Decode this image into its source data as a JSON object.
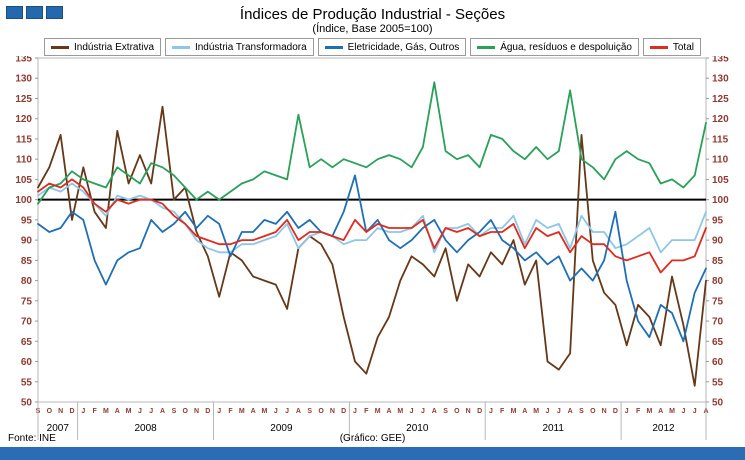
{
  "header": {
    "title": "Índices de Produção Industrial - Seções",
    "subtitle": "(Índice,  Base 2005=100)"
  },
  "footer": {
    "source": "Fonte: INE",
    "credit": "(Gráfico: GEE)"
  },
  "logo": {
    "color": "#2468ae"
  },
  "chart_data": {
    "type": "line",
    "title": "Índices de Produção Industrial - Seções",
    "subtitle": "(Índice, Base 2005=100)",
    "ylim": [
      50,
      135
    ],
    "ytick_step": 5,
    "baseline": 100,
    "legend_position": "top",
    "grid": false,
    "axis_label_color": "#8f3a32",
    "x_months": [
      "S",
      "O",
      "N",
      "D",
      "J",
      "F",
      "M",
      "A",
      "M",
      "J",
      "J",
      "A",
      "S",
      "O",
      "N",
      "D",
      "J",
      "F",
      "M",
      "A",
      "M",
      "J",
      "J",
      "A",
      "S",
      "O",
      "N",
      "D",
      "J",
      "F",
      "M",
      "A",
      "M",
      "J",
      "J",
      "A",
      "S",
      "O",
      "N",
      "D",
      "J",
      "F",
      "M",
      "A",
      "M",
      "J",
      "J",
      "A",
      "S",
      "O",
      "N",
      "D",
      "J",
      "F",
      "M",
      "A",
      "M",
      "J",
      "J",
      "A"
    ],
    "year_groups": [
      {
        "label": "2007",
        "start": 0,
        "end": 3
      },
      {
        "label": "2008",
        "start": 4,
        "end": 15
      },
      {
        "label": "2009",
        "start": 16,
        "end": 27
      },
      {
        "label": "2010",
        "start": 28,
        "end": 39
      },
      {
        "label": "2011",
        "start": 40,
        "end": 51
      },
      {
        "label": "2012",
        "start": 52,
        "end": 59
      }
    ],
    "series": [
      {
        "name": "Indústria Extrativa",
        "color": "#653819",
        "values": [
          103,
          108,
          116,
          95,
          108,
          97,
          93,
          117,
          104,
          111,
          104,
          123,
          100,
          103,
          92,
          86,
          76,
          87,
          85,
          81,
          80,
          79,
          73,
          88,
          91,
          89,
          84,
          71,
          60,
          57,
          66,
          71,
          80,
          86,
          84,
          81,
          88,
          75,
          84,
          81,
          87,
          84,
          90,
          79,
          85,
          60,
          58,
          62,
          116,
          85,
          77,
          74,
          64,
          74,
          71,
          64,
          81,
          69,
          54,
          80
        ]
      },
      {
        "name": "Indústria Transformadora",
        "color": "#8ec6e6",
        "values": [
          101,
          103,
          102,
          104,
          102,
          99,
          96,
          101,
          100,
          101,
          100,
          98,
          97,
          94,
          90,
          88,
          87,
          87,
          89,
          89,
          90,
          91,
          94,
          88,
          91,
          92,
          91,
          89,
          90,
          90,
          93,
          92,
          92,
          93,
          96,
          87,
          93,
          93,
          94,
          91,
          93,
          93,
          96,
          89,
          95,
          93,
          94,
          88,
          96,
          92,
          92,
          88,
          89,
          91,
          93,
          87,
          90,
          90,
          90,
          97
        ]
      },
      {
        "name": "Eletricidade, Gás, Outros",
        "color": "#1f6fb5",
        "values": [
          94,
          92,
          93,
          97,
          95,
          85,
          79,
          85,
          87,
          88,
          95,
          92,
          94,
          97,
          93,
          96,
          94,
          86,
          92,
          92,
          95,
          94,
          97,
          93,
          95,
          92,
          91,
          97,
          106,
          92,
          95,
          90,
          88,
          90,
          93,
          95,
          90,
          87,
          90,
          92,
          95,
          90,
          88,
          85,
          87,
          84,
          86,
          80,
          83,
          80,
          85,
          97,
          80,
          70,
          66,
          74,
          72,
          65,
          77,
          83
        ]
      },
      {
        "name": "Água, resíduos e despoluição",
        "color": "#2aa05a",
        "values": [
          99,
          103,
          104,
          107,
          105,
          104,
          103,
          108,
          106,
          104,
          109,
          108,
          106,
          103,
          100,
          102,
          100,
          102,
          104,
          105,
          107,
          106,
          105,
          121,
          108,
          110,
          108,
          110,
          109,
          108,
          110,
          111,
          110,
          108,
          113,
          129,
          112,
          110,
          111,
          108,
          116,
          115,
          112,
          110,
          113,
          110,
          112,
          127,
          110,
          108,
          105,
          110,
          112,
          110,
          109,
          104,
          105,
          103,
          106,
          119
        ]
      },
      {
        "name": "Total",
        "color": "#dd2c20",
        "values": [
          102,
          104,
          103,
          105,
          103,
          99,
          97,
          100,
          99,
          100,
          100,
          99,
          96,
          94,
          91,
          90,
          89,
          89,
          90,
          90,
          91,
          92,
          95,
          90,
          92,
          92,
          91,
          90,
          95,
          92,
          94,
          93,
          93,
          93,
          95,
          88,
          93,
          92,
          93,
          91,
          92,
          92,
          94,
          88,
          93,
          91,
          92,
          87,
          91,
          89,
          89,
          86,
          85,
          86,
          87,
          82,
          85,
          85,
          86,
          93
        ]
      }
    ]
  }
}
